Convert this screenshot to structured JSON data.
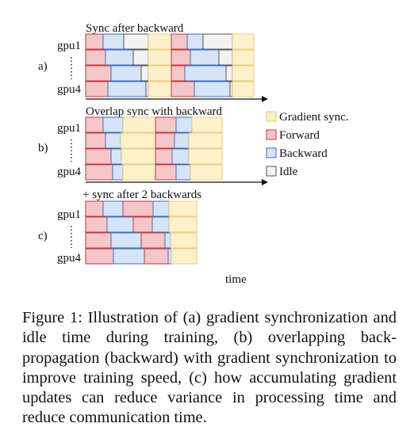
{
  "panels": [
    {
      "label": "a)",
      "title": "Sync after backward",
      "gpu_top": "gpu1",
      "gpu_bottom": "gpu4",
      "segments": [
        [
          [
            "F",
            1
          ],
          [
            "B",
            1
          ],
          [
            "I",
            1
          ],
          [
            "S",
            1
          ],
          [
            "F",
            1
          ],
          [
            "B",
            1
          ],
          [
            "I",
            1
          ],
          [
            "S",
            1
          ]
        ],
        [
          [
            "F",
            1
          ],
          [
            "B",
            1
          ],
          [
            "I",
            1
          ],
          [
            "S",
            1
          ],
          [
            "F",
            1
          ],
          [
            "B",
            1
          ],
          [
            "I",
            1
          ],
          [
            "S",
            1
          ]
        ],
        [
          [
            "F",
            1
          ],
          [
            "B",
            1
          ],
          [
            "I",
            1
          ],
          [
            "S",
            1
          ],
          [
            "F",
            1
          ],
          [
            "B",
            1
          ],
          [
            "I",
            1
          ],
          [
            "S",
            1
          ]
        ],
        [
          [
            "F",
            1
          ],
          [
            "B",
            1
          ],
          [
            "I",
            1
          ],
          [
            "S",
            1
          ],
          [
            "F",
            1
          ],
          [
            "B",
            1
          ],
          [
            "I",
            1
          ],
          [
            "S",
            1
          ]
        ]
      ]
    },
    {
      "label": "b)",
      "title": "Overlap sync with backward",
      "gpu_top": "gpu1",
      "gpu_bottom": "gpu4",
      "segments": [
        [
          [
            "F",
            1
          ],
          [
            "B",
            1
          ],
          [
            "S",
            1
          ],
          [
            "F",
            1
          ],
          [
            "B",
            1
          ],
          [
            "S",
            1
          ]
        ],
        [
          [
            "F",
            1
          ],
          [
            "B",
            1
          ],
          [
            "S",
            1
          ],
          [
            "F",
            1
          ],
          [
            "B",
            1
          ],
          [
            "S",
            1
          ]
        ],
        [
          [
            "F",
            1
          ],
          [
            "B",
            1
          ],
          [
            "S",
            1
          ],
          [
            "F",
            1
          ],
          [
            "B",
            1
          ],
          [
            "S",
            1
          ]
        ],
        [
          [
            "F",
            1
          ],
          [
            "B",
            1
          ],
          [
            "S",
            1
          ],
          [
            "F",
            1
          ],
          [
            "B",
            1
          ],
          [
            "S",
            1
          ]
        ]
      ]
    },
    {
      "label": "c)",
      "title": "+ sync after 2 backwards",
      "gpu_top": "gpu1",
      "gpu_bottom": "gpu4",
      "segments": [
        [
          [
            "F",
            1
          ],
          [
            "B",
            1
          ],
          [
            "F",
            1
          ],
          [
            "B",
            1
          ],
          [
            "S",
            1
          ]
        ],
        [
          [
            "F",
            1
          ],
          [
            "B",
            1
          ],
          [
            "F",
            1
          ],
          [
            "B",
            1
          ],
          [
            "S",
            1
          ]
        ],
        [
          [
            "F",
            1
          ],
          [
            "B",
            1
          ],
          [
            "F",
            1
          ],
          [
            "B",
            1
          ],
          [
            "S",
            1
          ]
        ],
        [
          [
            "F",
            1
          ],
          [
            "B",
            1
          ],
          [
            "F",
            1
          ],
          [
            "B",
            1
          ],
          [
            "S",
            1
          ]
        ]
      ]
    }
  ],
  "time_label": "time",
  "legend": [
    {
      "key": "S",
      "label": "Gradient sync.",
      "fill": "#fdf0c6",
      "stroke": "#e8c36b"
    },
    {
      "key": "F",
      "label": "Forward",
      "fill": "#f4c6c8",
      "stroke": "#c0393f"
    },
    {
      "key": "B",
      "label": "Backward",
      "fill": "#d6e4f7",
      "stroke": "#3d6fb8"
    },
    {
      "key": "I",
      "label": "Idle",
      "fill": "#f2f2f2",
      "stroke": "#555555"
    }
  ],
  "caption": "Figure 1: Illustration of (a) gradient synchronization and idle time during training, (b) overlapping back-propagation (backward) with gradient synchronization to improve training speed, (c) how accumulating gradient updates can reduce variance in processing time and reduce communication time."
}
